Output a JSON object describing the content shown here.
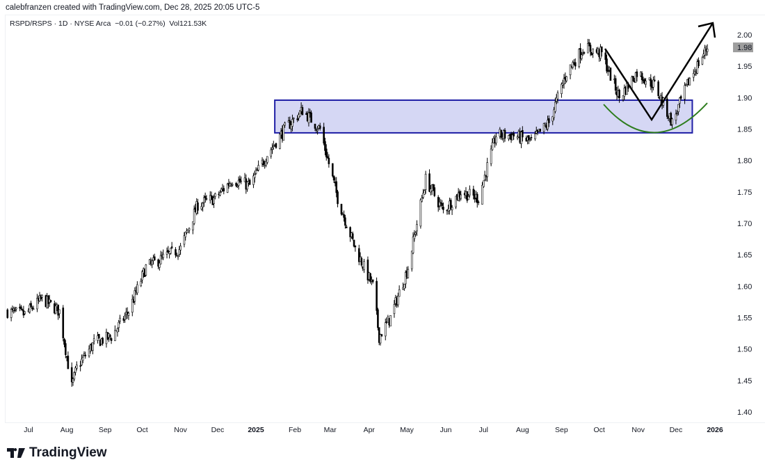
{
  "header": {
    "credit": "calebfranzen created with TradingView.com, Dec 28, 2025 20:05 UTC-5"
  },
  "legend": {
    "symbol": "RSPD/RSPS",
    "interval": "1D",
    "exchange": "NYSE Arca",
    "change": "−0.01 (−0.27%)",
    "volume": "Vol121.53K"
  },
  "brand": {
    "name": "TradingView"
  },
  "chart_data": {
    "type": "ohlc",
    "title": "RSPD/RSPS · 1D · NYSE Arca",
    "ylim": [
      1.38,
      2.03
    ],
    "y_ticks": [
      "2.00",
      "1.95",
      "1.90",
      "1.85",
      "1.80",
      "1.75",
      "1.70",
      "1.65",
      "1.60",
      "1.55",
      "1.50",
      "1.45",
      "1.40"
    ],
    "x_ticks": [
      {
        "label": "Jul",
        "date": "2024-07-01"
      },
      {
        "label": "Aug",
        "date": "2024-08-01"
      },
      {
        "label": "Sep",
        "date": "2024-09-01"
      },
      {
        "label": "Oct",
        "date": "2024-10-01"
      },
      {
        "label": "Nov",
        "date": "2024-11-01"
      },
      {
        "label": "Dec",
        "date": "2024-12-01"
      },
      {
        "label": "2025",
        "date": "2025-01-01",
        "bold": true
      },
      {
        "label": "Feb",
        "date": "2025-02-01"
      },
      {
        "label": "Mar",
        "date": "2025-03-01"
      },
      {
        "label": "Apr",
        "date": "2025-04-01"
      },
      {
        "label": "May",
        "date": "2025-05-01"
      },
      {
        "label": "Jun",
        "date": "2025-06-01"
      },
      {
        "label": "Jul",
        "date": "2025-07-01"
      },
      {
        "label": "Aug",
        "date": "2025-08-01"
      },
      {
        "label": "Sep",
        "date": "2025-09-01"
      },
      {
        "label": "Oct",
        "date": "2025-10-01"
      },
      {
        "label": "Nov",
        "date": "2025-11-01"
      },
      {
        "label": "Dec",
        "date": "2025-12-01"
      },
      {
        "label": "2026",
        "date": "2026-01-01",
        "bold": true
      }
    ],
    "last_price": "1.98",
    "last_price_color": "#9e9e9e",
    "approx_closes": [
      [
        "2024-06-14",
        1.56
      ],
      [
        "2024-06-28",
        1.555
      ],
      [
        "2024-07-12",
        1.58
      ],
      [
        "2024-07-26",
        1.56
      ],
      [
        "2024-08-05",
        1.44
      ],
      [
        "2024-08-09",
        1.47
      ],
      [
        "2024-08-23",
        1.51
      ],
      [
        "2024-09-06",
        1.52
      ],
      [
        "2024-09-20",
        1.56
      ],
      [
        "2024-10-04",
        1.63
      ],
      [
        "2024-10-18",
        1.645
      ],
      [
        "2024-11-01",
        1.66
      ],
      [
        "2024-11-15",
        1.73
      ],
      [
        "2024-11-29",
        1.74
      ],
      [
        "2024-12-13",
        1.77
      ],
      [
        "2024-12-27",
        1.76
      ],
      [
        "2025-01-10",
        1.81
      ],
      [
        "2025-01-24",
        1.85
      ],
      [
        "2025-02-07",
        1.88
      ],
      [
        "2025-02-21",
        1.85
      ],
      [
        "2025-03-07",
        1.74
      ],
      [
        "2025-03-21",
        1.66
      ],
      [
        "2025-04-04",
        1.6
      ],
      [
        "2025-04-09",
        1.52
      ],
      [
        "2025-04-18",
        1.55
      ],
      [
        "2025-05-02",
        1.63
      ],
      [
        "2025-05-16",
        1.77
      ],
      [
        "2025-05-30",
        1.72
      ],
      [
        "2025-06-13",
        1.75
      ],
      [
        "2025-06-27",
        1.74
      ],
      [
        "2025-07-11",
        1.84
      ],
      [
        "2025-07-25",
        1.84
      ],
      [
        "2025-08-08",
        1.83
      ],
      [
        "2025-08-22",
        1.86
      ],
      [
        "2025-09-05",
        1.94
      ],
      [
        "2025-09-19",
        1.98
      ],
      [
        "2025-10-03",
        1.97
      ],
      [
        "2025-10-17",
        1.9
      ],
      [
        "2025-10-31",
        1.94
      ],
      [
        "2025-11-14",
        1.92
      ],
      [
        "2025-11-28",
        1.86
      ],
      [
        "2025-12-12",
        1.93
      ],
      [
        "2025-12-26",
        1.98
      ]
    ],
    "annotations": {
      "zone": {
        "from": "2025-01-16",
        "to": "2025-12-14",
        "low": 1.844,
        "high": 1.896,
        "fill": "#d5d7f4",
        "border": "#1f1fa6"
      },
      "curve_color": "#2e7d1e",
      "arrow_color": "#000000"
    },
    "grid": false
  }
}
